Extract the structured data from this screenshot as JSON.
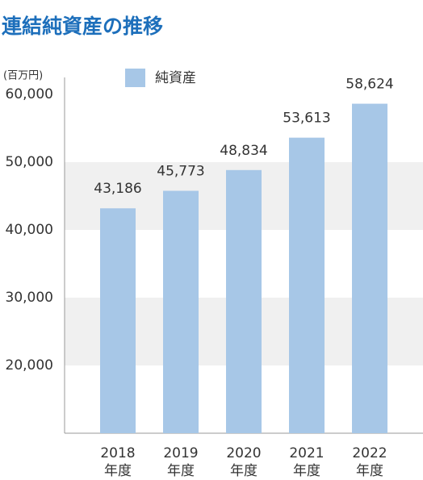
{
  "chart_data": {
    "type": "bar",
    "title": "連結純資産の推移",
    "unit": "(百万円)",
    "categories": [
      [
        "2018",
        "年度"
      ],
      [
        "2019",
        "年度"
      ],
      [
        "2020",
        "年度"
      ],
      [
        "2021",
        "年度"
      ],
      [
        "2022",
        "年度"
      ]
    ],
    "series": [
      {
        "name": "純資産",
        "color": "#a7c7e7",
        "values": [
          43186,
          45773,
          48834,
          53613,
          58624
        ],
        "value_labels": [
          "43,186",
          "45,773",
          "48,834",
          "53,613",
          "58,624"
        ]
      }
    ],
    "ylim": [
      10000,
      62500
    ],
    "yticks": [
      {
        "value": 20000,
        "label": "20,000"
      },
      {
        "value": 30000,
        "label": "30,000"
      },
      {
        "value": 40000,
        "label": "40,000"
      },
      {
        "value": 50000,
        "label": "50,000"
      },
      {
        "value": 60000,
        "label": "60,000"
      }
    ],
    "grid": false,
    "bands": true
  }
}
